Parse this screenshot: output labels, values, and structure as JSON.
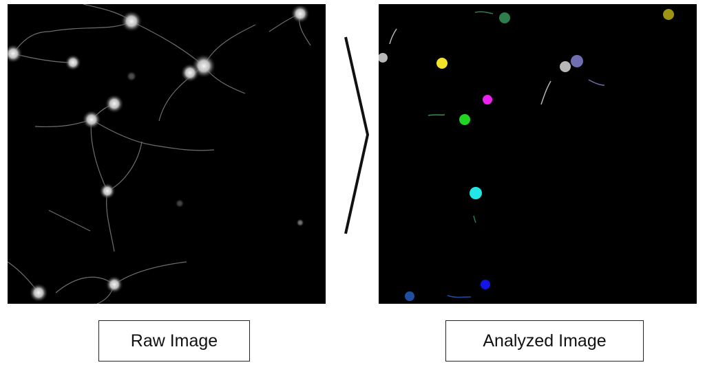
{
  "captions": {
    "raw": "Raw Image",
    "analyzed": "Analyzed Image"
  },
  "colors": {
    "background": "#ffffff",
    "panel_background": "#000000",
    "arrow_stroke": "#111111",
    "raw_cells": "#dcdcdc",
    "segment_colors": [
      "#2e7d4f",
      "#9c9412",
      "#b8b8b8",
      "#f2e229",
      "#6e6eb0",
      "#ee22ee",
      "#22d422",
      "#22e6e6",
      "#1414e6",
      "#1e4fa0"
    ]
  }
}
